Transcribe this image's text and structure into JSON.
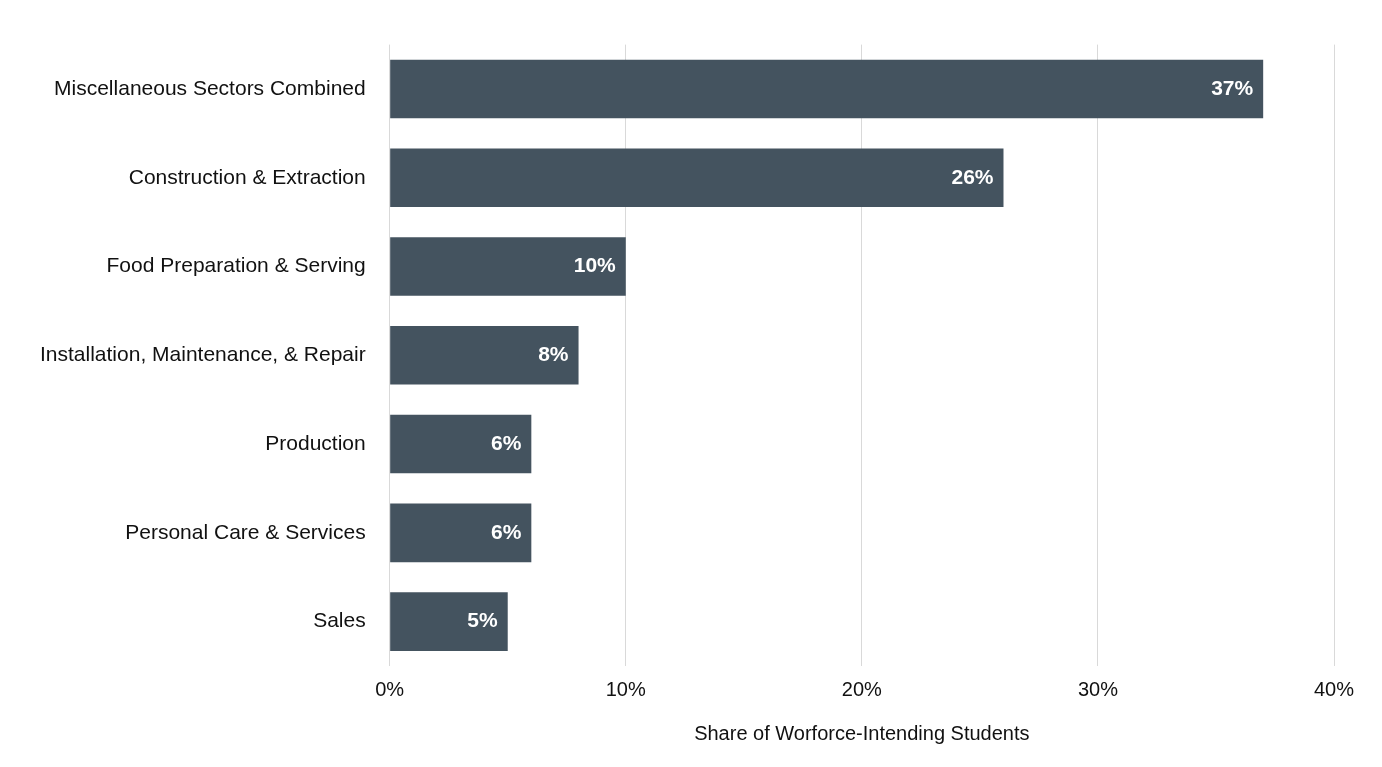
{
  "chart_data": {
    "type": "bar",
    "orientation": "horizontal",
    "xlabel": "Share of Worforce-Intending Students",
    "categories": [
      "Miscellaneous Sectors Combined",
      "Construction & Extraction",
      "Food Preparation & Serving",
      "Installation, Maintenance, & Repair",
      "Production",
      "Personal Care & Services",
      "Sales"
    ],
    "values": [
      37,
      26,
      10,
      8,
      6,
      6,
      5
    ],
    "value_labels": [
      "37%",
      "26%",
      "10%",
      "8%",
      "6%",
      "6%",
      "5%"
    ],
    "color": "#44535f",
    "xlim": [
      0,
      40
    ],
    "xticks": [
      {
        "value": 0,
        "label": "0%"
      },
      {
        "value": 10,
        "label": "10%"
      },
      {
        "value": 20,
        "label": "20%"
      },
      {
        "value": 30,
        "label": "30%"
      },
      {
        "value": 40,
        "label": "40%"
      }
    ],
    "grid": "x",
    "legend": false
  }
}
